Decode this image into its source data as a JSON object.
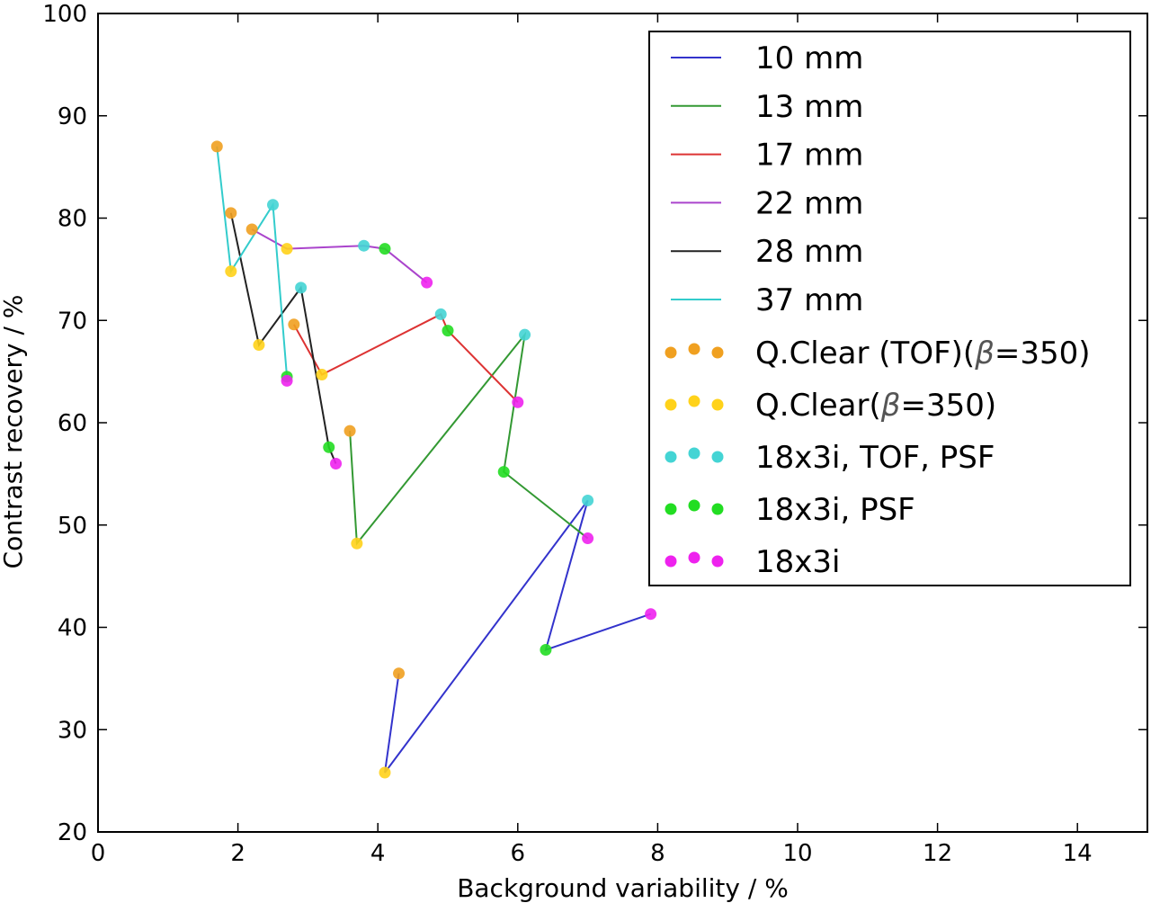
{
  "chart_data": {
    "type": "line",
    "title": "",
    "xlabel": "Background variability / %",
    "ylabel": "Contrast recovery / %",
    "xlim": [
      0,
      15
    ],
    "ylim": [
      20,
      100
    ],
    "xticks": [
      0,
      2,
      4,
      6,
      8,
      10,
      12,
      14
    ],
    "yticks": [
      20,
      30,
      40,
      50,
      60,
      70,
      80,
      90,
      100
    ],
    "grid": false,
    "legend_position": "top-right",
    "series": [
      {
        "name": "10 mm",
        "color": "#3333cc",
        "x": [
          4.3,
          4.1,
          7.0,
          6.4,
          7.9
        ],
        "y": [
          35.5,
          25.8,
          52.4,
          37.8,
          41.3
        ],
        "marker_styles": [
          "qclear_tof",
          "qclear",
          "tof_psf",
          "psf",
          "base"
        ]
      },
      {
        "name": "13 mm",
        "color": "#339933",
        "x": [
          3.6,
          3.7,
          6.1,
          5.8,
          7.0
        ],
        "y": [
          59.2,
          48.2,
          68.6,
          55.2,
          48.7
        ],
        "marker_styles": [
          "qclear_tof",
          "qclear",
          "tof_psf",
          "psf",
          "base"
        ]
      },
      {
        "name": "17 mm",
        "color": "#dd3333",
        "x": [
          2.8,
          3.2,
          4.9,
          5.0,
          6.0
        ],
        "y": [
          69.6,
          64.7,
          70.6,
          69.0,
          62.0
        ],
        "marker_styles": [
          "qclear_tof",
          "qclear",
          "tof_psf",
          "psf",
          "base"
        ]
      },
      {
        "name": "22 mm",
        "color": "#aa44cc",
        "x": [
          2.2,
          2.7,
          3.8,
          4.1,
          4.7
        ],
        "y": [
          78.9,
          77.0,
          77.3,
          77.0,
          73.7
        ],
        "marker_styles": [
          "qclear_tof",
          "qclear",
          "tof_psf",
          "psf",
          "base"
        ]
      },
      {
        "name": "28 mm",
        "color": "#222222",
        "x": [
          1.9,
          2.3,
          2.9,
          3.3,
          3.4
        ],
        "y": [
          80.5,
          67.6,
          73.2,
          57.6,
          56.0
        ],
        "marker_styles": [
          "qclear_tof",
          "qclear",
          "tof_psf",
          "psf",
          "base"
        ]
      },
      {
        "name": "37 mm",
        "color": "#33cccc",
        "x": [
          1.7,
          1.9,
          2.5,
          2.7,
          2.7
        ],
        "y": [
          87.0,
          74.8,
          81.3,
          64.5,
          64.1
        ],
        "marker_styles": [
          "qclear_tof",
          "qclear",
          "tof_psf",
          "psf",
          "base"
        ]
      }
    ],
    "marker_legend": [
      {
        "key": "qclear_tof",
        "label_parts": [
          "Q.Clear (TOF)(",
          "β",
          "=350)"
        ],
        "color": "#f0a020"
      },
      {
        "key": "qclear",
        "label_parts": [
          "Q.Clear(",
          "β",
          "=350)"
        ],
        "color": "#ffd21a"
      },
      {
        "key": "tof_psf",
        "label": "18x3i, TOF, PSF",
        "color": "#44d4d4"
      },
      {
        "key": "psf",
        "label": "18x3i, PSF",
        "color": "#22dd22"
      },
      {
        "key": "base",
        "label": "18x3i",
        "color": "#ee22ee"
      }
    ]
  }
}
